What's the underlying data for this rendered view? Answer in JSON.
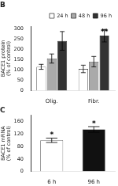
{
  "chart_data": [
    {
      "type": "bar",
      "title": "B",
      "categories": [
        "Olig.",
        "Fibr."
      ],
      "series": [
        {
          "name": "24 h",
          "color": "#ffffff",
          "values": [
            115,
            105
          ],
          "errors": [
            12,
            18
          ]
        },
        {
          "name": "48 h",
          "color": "#aaaaaa",
          "values": [
            155,
            140
          ],
          "errors": [
            22,
            25
          ]
        },
        {
          "name": "96 h",
          "color": "#333333",
          "values": [
            240,
            265
          ],
          "errors": [
            45,
            30
          ]
        }
      ],
      "ylabel": "BACE1 protein\n(% of control)",
      "ylim": [
        0,
        310
      ],
      "yticks": [
        0,
        50,
        100,
        150,
        200,
        250,
        300
      ],
      "annotations": [
        {
          "text": "**",
          "x": "Fibr.",
          "series": "96 h",
          "y": 278
        }
      ],
      "legend": "upper right",
      "grid": false
    },
    {
      "type": "bar",
      "title": "C",
      "categories": [
        "6 h",
        "96 h"
      ],
      "values": [
        100,
        135
      ],
      "errors": [
        7,
        9
      ],
      "colors": [
        "#ffffff",
        "#111111"
      ],
      "ylabel": "BACE1 mRNA\n(% of control)",
      "ylim": [
        0,
        180
      ],
      "yticks": [
        0,
        40,
        80,
        120,
        160
      ],
      "annotations": [
        {
          "text": "*",
          "x": "6 h",
          "y": 112
        },
        {
          "text": "*",
          "x": "96 h",
          "y": 149
        }
      ],
      "grid": false
    }
  ]
}
